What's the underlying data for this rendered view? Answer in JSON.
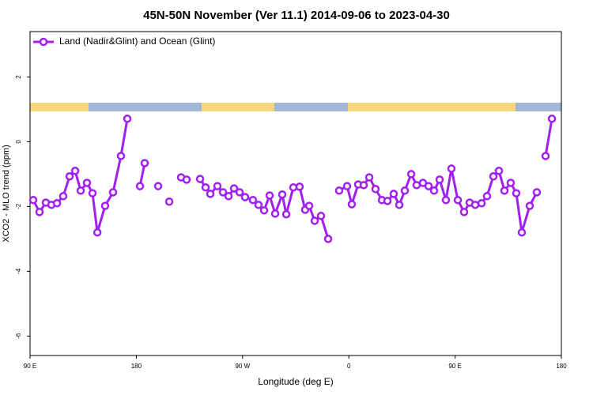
{
  "chart_data": {
    "type": "line",
    "title": "45N-50N November (Ver 11.1)   2014-09-06 to 2023-04-30",
    "xlabel": "Longitude (deg E)",
    "ylabel": "XCO2 - MLO trend (ppm)",
    "xlim": [
      90,
      540
    ],
    "xticks": [
      {
        "value": 90,
        "label": "90 E"
      },
      {
        "value": 180,
        "label": "180"
      },
      {
        "value": 270,
        "label": "90 W"
      },
      {
        "value": 360,
        "label": "0"
      },
      {
        "value": 450,
        "label": "90 E"
      },
      {
        "value": 540,
        "label": "180"
      }
    ],
    "ylim": [
      -6.6,
      3.4
    ],
    "yticks": [
      -6,
      -4,
      -2,
      0,
      2
    ],
    "legend": "top-left",
    "series": [
      {
        "name": "Land (Nadir&Glint) and Ocean (Glint)",
        "color": "#a020f0",
        "x": [
          92.7,
          98.0,
          103.4,
          108.1,
          112.8,
          118.1,
          123.5,
          128.2,
          132.9,
          138.2,
          142.9,
          147.0,
          153.6,
          160.3,
          167.0,
          172.4,
          175,
          183.1,
          187.1,
          190,
          198.5,
          205,
          207.9,
          212,
          217.9,
          222.6,
          230,
          234.0,
          238.7,
          242.7,
          248.7,
          253.4,
          258.1,
          262.8,
          267.5,
          272.1,
          278.8,
          283.5,
          288.2,
          292.9,
          297.6,
          303.6,
          307.0,
          313.0,
          318.3,
          323.0,
          326.4,
          331.1,
          336.4,
          342.5,
          347,
          351.8,
          358.5,
          362.5,
          367.9,
          372.6,
          377.3,
          382.6,
          388.0,
          392.7,
          398.0,
          402.7,
          407.4,
          412.8,
          417.4,
          422.8,
          427.5,
          432.2,
          436.9,
          442.2,
          446.9,
          452.3,
          457.6,
          462.3,
          467.0,
          472.4,
          477.0,
          482.4,
          487.1,
          491.8,
          497.1,
          501.8,
          506.5,
          513.2,
          519.2,
          522,
          526.6,
          532.0
        ],
        "values": [
          -1.8,
          -2.17,
          -1.88,
          -1.95,
          -1.9,
          -1.68,
          -1.07,
          -0.9,
          -1.51,
          -1.27,
          -1.59,
          -2.8,
          -1.98,
          -1.56,
          -0.44,
          0.71,
          null,
          -1.37,
          -0.66,
          null,
          -1.37,
          null,
          -1.85,
          null,
          -1.1,
          -1.17,
          null,
          -1.15,
          -1.41,
          -1.61,
          -1.37,
          -1.56,
          -1.68,
          -1.44,
          -1.56,
          -1.71,
          -1.8,
          -1.95,
          -2.12,
          -1.66,
          -2.22,
          -1.63,
          -2.24,
          -1.41,
          -1.39,
          -2.1,
          -1.98,
          -2.44,
          -2.29,
          -3.0,
          null,
          -1.51,
          -1.37,
          -1.93,
          -1.32,
          -1.34,
          -1.1,
          -1.46,
          -1.8,
          -1.83,
          -1.61,
          -1.95,
          -1.51,
          -1.0,
          -1.34,
          -1.27,
          -1.37,
          -1.51,
          -1.17,
          -1.8,
          -0.83,
          -1.8,
          -2.17,
          -1.88,
          -1.95,
          -1.9,
          -1.68,
          -1.07,
          -0.9,
          -1.51,
          -1.27,
          -1.59,
          -2.8,
          -1.98,
          -1.56,
          null,
          -0.44,
          0.71
        ]
      }
    ]
  }
}
